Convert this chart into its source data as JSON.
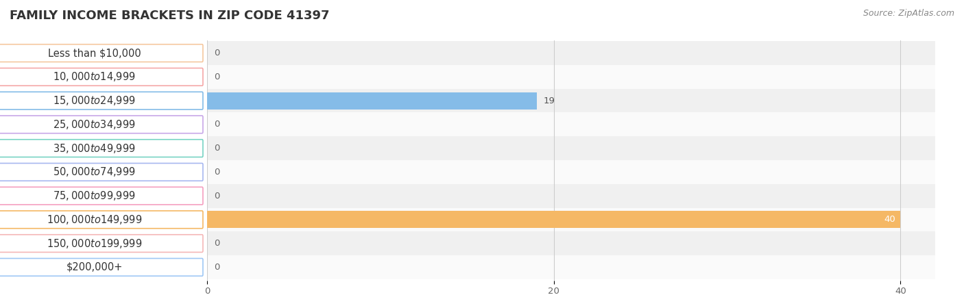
{
  "title": "FAMILY INCOME BRACKETS IN ZIP CODE 41397",
  "source": "Source: ZipAtlas.com",
  "categories": [
    "Less than $10,000",
    "$10,000 to $14,999",
    "$15,000 to $24,999",
    "$25,000 to $34,999",
    "$35,000 to $49,999",
    "$50,000 to $74,999",
    "$75,000 to $99,999",
    "$100,000 to $149,999",
    "$150,000 to $199,999",
    "$200,000+"
  ],
  "values": [
    0,
    0,
    19,
    0,
    0,
    0,
    0,
    40,
    0,
    0
  ],
  "bar_colors": [
    "#f5c8a0",
    "#f5a8a8",
    "#85bce8",
    "#c8a8e8",
    "#78d4c4",
    "#a8b8f0",
    "#f5a0c0",
    "#f5b865",
    "#f5b8b8",
    "#a0c8f5"
  ],
  "bg_color": "#ffffff",
  "row_bg_even": "#f0f0f0",
  "row_bg_odd": "#fafafa",
  "xlim": [
    0,
    42
  ],
  "xticks": [
    0,
    20,
    40
  ],
  "title_fontsize": 13,
  "label_fontsize": 10.5,
  "value_label_fontsize": 9.5,
  "source_fontsize": 9
}
